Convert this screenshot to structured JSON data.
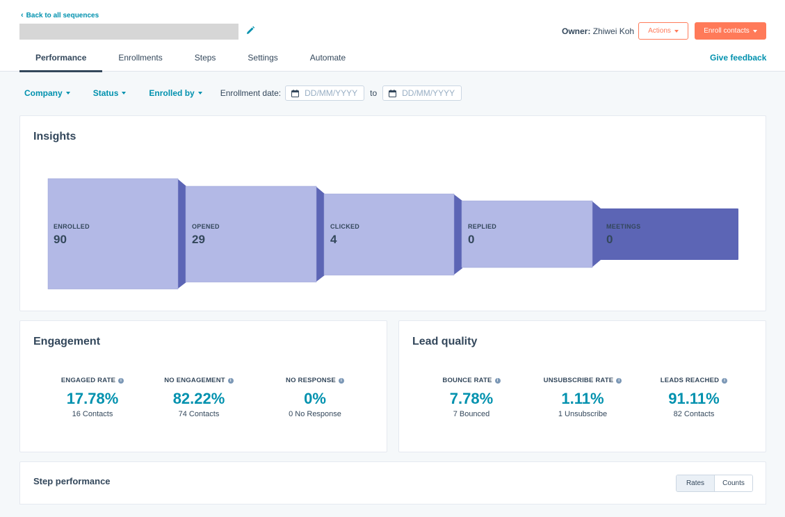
{
  "header": {
    "back_link": "Back to all sequences",
    "owner_label": "Owner:",
    "owner_name": "Zhiwei Koh",
    "actions_label": "Actions",
    "enroll_label": "Enroll contacts",
    "give_feedback": "Give feedback"
  },
  "tabs": [
    {
      "label": "Performance",
      "active": true
    },
    {
      "label": "Enrollments",
      "active": false
    },
    {
      "label": "Steps",
      "active": false
    },
    {
      "label": "Settings",
      "active": false
    },
    {
      "label": "Automate",
      "active": false
    }
  ],
  "filters": {
    "company": "Company",
    "status": "Status",
    "enrolled_by": "Enrolled by",
    "enrollment_date_label": "Enrollment date:",
    "date_from_placeholder": "DD/MM/YYYY",
    "to_label": "to",
    "date_to_placeholder": "DD/MM/YYYY"
  },
  "insights": {
    "title": "Insights",
    "stages": [
      {
        "label": "ENROLLED",
        "value": "90"
      },
      {
        "label": "OPENED",
        "value": "29"
      },
      {
        "label": "CLICKED",
        "value": "4"
      },
      {
        "label": "REPLIED",
        "value": "0"
      },
      {
        "label": "MEETINGS",
        "value": "0"
      }
    ]
  },
  "engagement": {
    "title": "Engagement",
    "metrics": [
      {
        "label": "ENGAGED RATE",
        "value": "17.78%",
        "sub": "16 Contacts"
      },
      {
        "label": "NO ENGAGEMENT",
        "value": "82.22%",
        "sub": "74 Contacts"
      },
      {
        "label": "NO RESPONSE",
        "value": "0%",
        "sub": "0 No Response"
      }
    ]
  },
  "lead_quality": {
    "title": "Lead quality",
    "metrics": [
      {
        "label": "BOUNCE RATE",
        "value": "7.78%",
        "sub": "7 Bounced"
      },
      {
        "label": "UNSUBSCRIBE RATE",
        "value": "1.11%",
        "sub": "1 Unsubscribe"
      },
      {
        "label": "LEADS REACHED",
        "value": "91.11%",
        "sub": "82 Contacts"
      }
    ]
  },
  "step_performance": {
    "title": "Step performance",
    "rates_label": "Rates",
    "counts_label": "Counts",
    "selected": "Rates"
  },
  "colors": {
    "accent": "#0091ae",
    "primary_button": "#ff7a59",
    "funnel_light": "#b3b9e6",
    "funnel_dark": "#5c65b5",
    "text": "#33475b"
  },
  "icons": {
    "back": "chevron-left-icon",
    "edit": "pencil-icon",
    "calendar": "calendar-icon",
    "info": "info-icon",
    "dropdown": "caret-down-icon"
  }
}
